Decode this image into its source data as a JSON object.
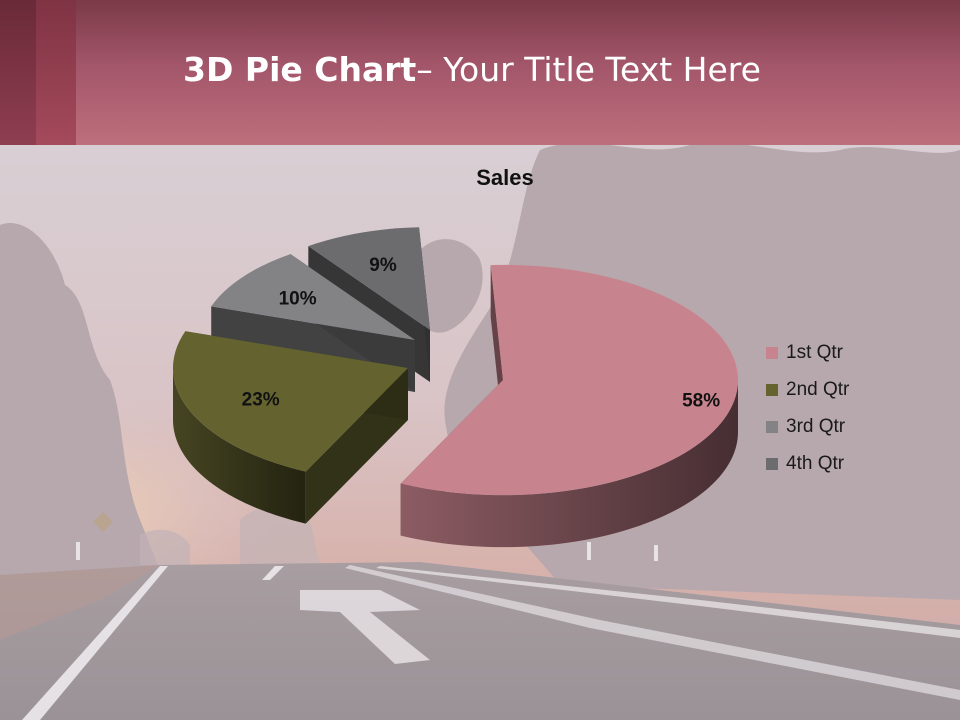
{
  "slide": {
    "title_bold": "3D Pie Chart",
    "title_rest": "– Your Title Text Here"
  },
  "colors": {
    "header": "#bd6f7c",
    "slice_1": "#c8848e",
    "slice_2": "#646330",
    "slice_3": "#838385",
    "slice_4": "#6c6c6e"
  },
  "chart_data": {
    "type": "pie",
    "title": "Sales",
    "categories": [
      "1st Qtr",
      "2nd Qtr",
      "3rd Qtr",
      "4th Qtr"
    ],
    "values": [
      58,
      23,
      10,
      9
    ],
    "data_labels": [
      "58%",
      "23%",
      "10%",
      "9%"
    ],
    "exploded": true,
    "three_d": true,
    "legend": "right"
  }
}
